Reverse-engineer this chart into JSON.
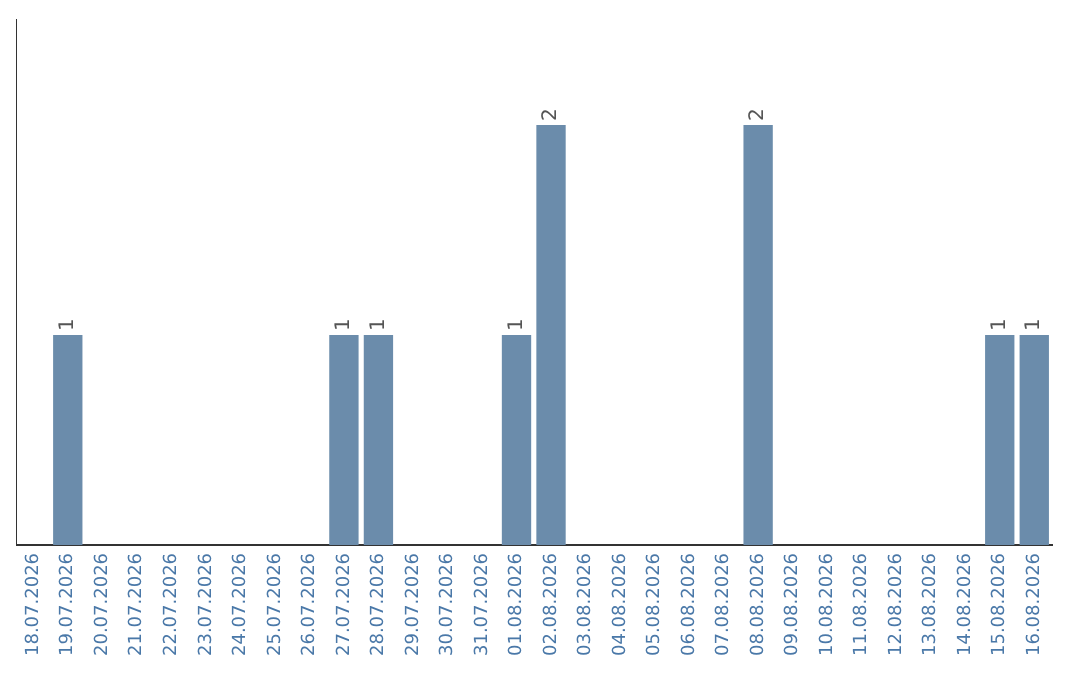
{
  "chart_data": {
    "type": "bar",
    "categories": [
      "18.07.2026",
      "19.07.2026",
      "20.07.2026",
      "21.07.2026",
      "22.07.2026",
      "23.07.2026",
      "24.07.2026",
      "25.07.2026",
      "26.07.2026",
      "27.07.2026",
      "28.07.2026",
      "29.07.2026",
      "30.07.2026",
      "31.07.2026",
      "01.08.2026",
      "02.08.2026",
      "03.08.2026",
      "04.08.2026",
      "05.08.2026",
      "06.08.2026",
      "07.08.2026",
      "08.08.2026",
      "09.08.2026",
      "10.08.2026",
      "11.08.2026",
      "12.08.2026",
      "13.08.2026",
      "14.08.2026",
      "15.08.2026",
      "16.08.2026"
    ],
    "values": [
      0,
      1,
      0,
      0,
      0,
      0,
      0,
      0,
      0,
      1,
      1,
      0,
      0,
      0,
      1,
      2,
      0,
      0,
      0,
      0,
      0,
      2,
      0,
      0,
      0,
      0,
      0,
      0,
      1,
      1
    ],
    "value_labels": [
      null,
      "1",
      null,
      null,
      null,
      null,
      null,
      null,
      null,
      "1",
      "1",
      null,
      null,
      null,
      "1",
      "2",
      null,
      null,
      null,
      null,
      null,
      "2",
      null,
      null,
      null,
      null,
      null,
      null,
      "1",
      "1"
    ],
    "color": "#6b8cab",
    "grid": false,
    "legend": false,
    "tick_labels": "x"
  }
}
